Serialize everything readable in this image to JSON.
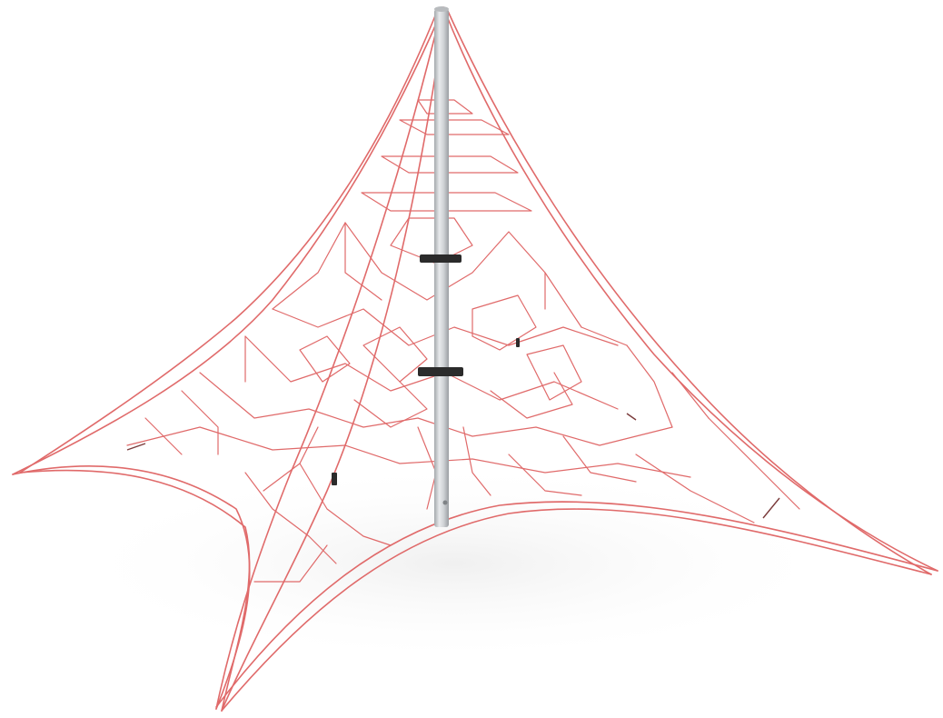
{
  "image": {
    "subject": "rope-net-climbing-pyramid",
    "colors": {
      "background": "#ffffff",
      "rope": "#e06a6a",
      "rope_dark": "#c94f4f",
      "pole_light": "#e4e6e8",
      "pole_mid": "#c3c6c9",
      "pole_dark": "#9da1a5",
      "connector": "#2b2b2b",
      "ground_shadow": "#f3f3f3"
    }
  }
}
